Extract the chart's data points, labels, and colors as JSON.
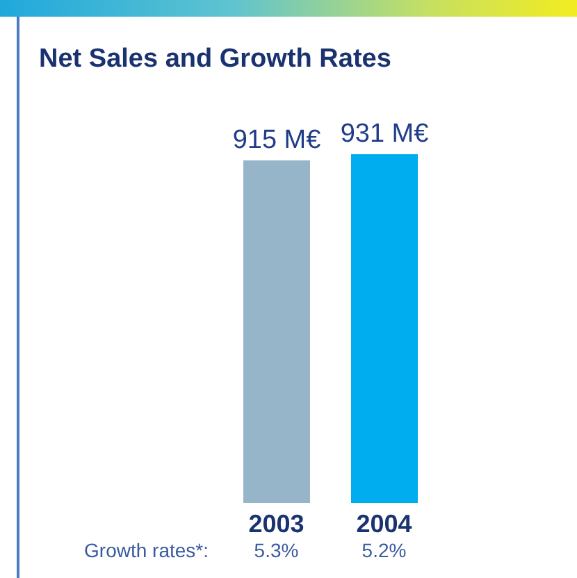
{
  "chart_data": {
    "type": "bar",
    "title": "Net Sales and Growth Rates",
    "categories": [
      "2003",
      "2004"
    ],
    "values": [
      915,
      931
    ],
    "colors": [
      "#97b5c8",
      "#00aeef"
    ],
    "value_labels": [
      "915 M€",
      "931 M€"
    ],
    "annotations": [
      "Growth rates*:",
      "5.3%",
      "5.2%"
    ]
  }
}
